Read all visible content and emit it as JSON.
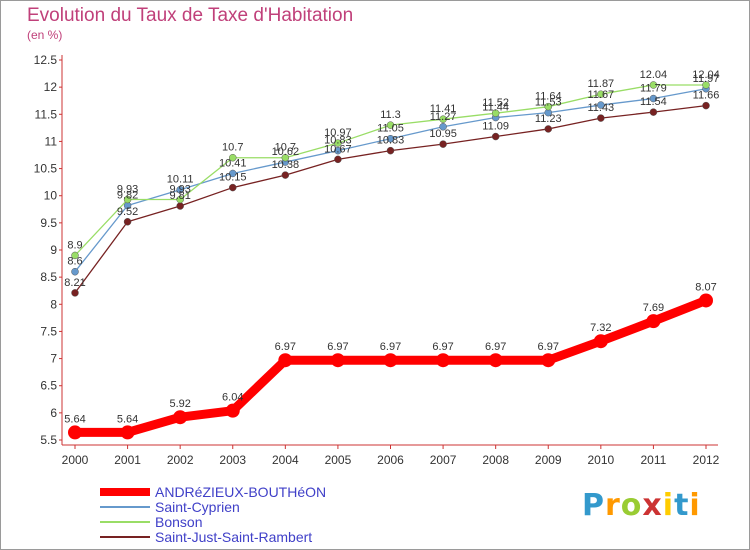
{
  "header": {
    "title": "Evolution du Taux de Taxe d'Habitation",
    "subtitle": "(en %)"
  },
  "chart_data": {
    "type": "line",
    "x": [
      "2000",
      "2001",
      "2002",
      "2003",
      "2004",
      "2005",
      "2006",
      "2007",
      "2008",
      "2009",
      "2010",
      "2011",
      "2012"
    ],
    "ylim": [
      5.5,
      12.5
    ],
    "yticks": [
      5.5,
      6,
      6.5,
      7,
      7.5,
      8,
      8.5,
      9,
      9.5,
      10,
      10.5,
      11,
      11.5,
      12,
      12.5
    ],
    "grid": false,
    "legend_position": "bottom-left",
    "series": [
      {
        "name": "ANDRéZIEUX-BOUTHéON",
        "color": "#ff0000",
        "values": [
          5.64,
          5.64,
          5.92,
          6.04,
          6.97,
          6.97,
          6.97,
          6.97,
          6.97,
          6.97,
          7.32,
          7.69,
          8.07
        ],
        "labels": [
          "5.64",
          "5.64",
          "5.92",
          "6.04",
          "6.97",
          "6.97",
          "6.97",
          "6.97",
          "6.97",
          "6.97",
          "7.32",
          "7.69",
          "8.07"
        ]
      },
      {
        "name": "Saint-Cyprien",
        "color": "#6699cc",
        "values": [
          8.6,
          9.82,
          10.11,
          10.41,
          10.62,
          10.83,
          11.05,
          11.27,
          11.44,
          11.53,
          11.67,
          11.79,
          11.97
        ],
        "labels": [
          "8.6",
          "9.82",
          "10.11",
          "10.41",
          "10.62",
          "10.83",
          "11.05",
          "11.27",
          "11.44",
          "11.53",
          "11.67",
          "11.79",
          "11.97"
        ]
      },
      {
        "name": "Bonson",
        "color": "#99dd66",
        "values": [
          8.9,
          9.93,
          9.93,
          10.7,
          10.7,
          10.97,
          11.3,
          11.41,
          11.52,
          11.64,
          11.87,
          12.04,
          12.04
        ],
        "labels": [
          "8.9",
          "9.93",
          "9.93",
          "10.7",
          "10.7",
          "10.97",
          "11.3",
          "11.41",
          "11.52",
          "11.64",
          "11.87",
          "12.04",
          "12.04"
        ]
      },
      {
        "name": "Saint-Just-Saint-Rambert",
        "color": "#772222",
        "values": [
          8.21,
          9.52,
          9.81,
          10.15,
          10.38,
          10.67,
          10.83,
          10.95,
          11.09,
          11.23,
          11.43,
          11.54,
          11.66
        ],
        "labels": [
          "8.21",
          "9.52",
          "9.81",
          "10.15",
          "10.38",
          "10.67",
          "10.83",
          "10.95",
          "11.09",
          "11.23",
          "11.43",
          "11.54",
          "11.66"
        ]
      }
    ]
  },
  "logo": {
    "letters": [
      "P",
      "r",
      "o",
      "x",
      "i",
      "t",
      "i"
    ],
    "colors": [
      "#3399cc",
      "#ff9900",
      "#99cc33",
      "#cc3333",
      "#ffcc00",
      "#3399cc",
      "#ff9900"
    ]
  }
}
